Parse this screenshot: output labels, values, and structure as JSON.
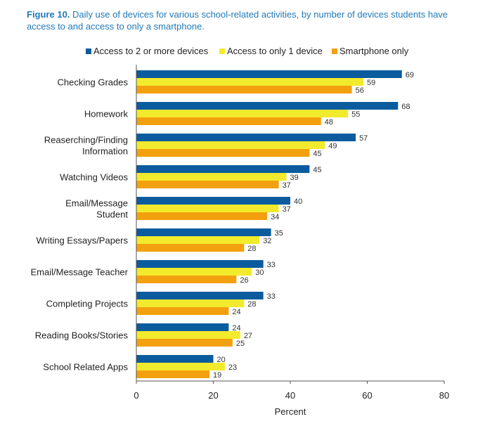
{
  "figure": {
    "lead": "Figure 10.",
    "caption": "Daily use of devices for various school-related activities, by number of devices students have access to and access to only a smartphone."
  },
  "chart_data": {
    "type": "bar",
    "orientation": "horizontal",
    "categories": [
      "Checking Grades",
      "Homework",
      "Reaserching/Finding Information",
      "Watching Videos",
      "Email/Message Student",
      "Writing Essays/Papers",
      "Email/Message Teacher",
      "Completing Projects",
      "Reading Books/Stories",
      "School Related Apps"
    ],
    "category_lines": [
      [
        "Checking Grades"
      ],
      [
        "Homework"
      ],
      [
        "Reaserching/Finding",
        "Information"
      ],
      [
        "Watching Videos"
      ],
      [
        "Email/Message",
        "Student"
      ],
      [
        "Writing Essays/Papers"
      ],
      [
        "Email/Message Teacher"
      ],
      [
        "Completing Projects"
      ],
      [
        "Reading Books/Stories"
      ],
      [
        "School Related Apps"
      ]
    ],
    "series": [
      {
        "name": "Access to 2 or more devices",
        "color": "#0b5c9e",
        "values": [
          69,
          68,
          57,
          45,
          40,
          35,
          33,
          33,
          24,
          20
        ]
      },
      {
        "name": "Access to only 1 device",
        "color": "#f2ea2c",
        "values": [
          59,
          55,
          49,
          39,
          37,
          32,
          30,
          28,
          27,
          23
        ]
      },
      {
        "name": "Smartphone only",
        "color": "#f3a00f",
        "values": [
          56,
          48,
          45,
          37,
          34,
          28,
          26,
          24,
          25,
          19
        ]
      }
    ],
    "xlim": [
      0,
      80
    ],
    "xticks": [
      0,
      20,
      40,
      60,
      80
    ],
    "xlabel": "Percent",
    "ylabel": "",
    "grid": false,
    "legend_position": "top"
  }
}
